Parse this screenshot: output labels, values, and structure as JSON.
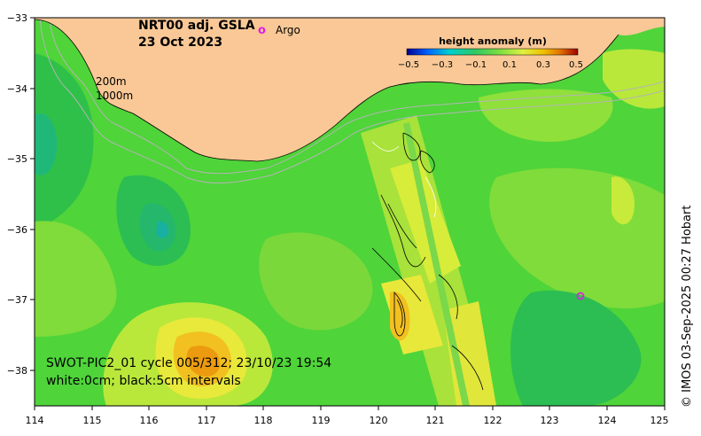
{
  "map": {
    "title_line1": "NRT00 adj. GSLA",
    "title_line2": "23 Oct 2023",
    "argo_marker": "o",
    "argo_label": "Argo",
    "depth_label_200": "200m",
    "depth_label_1000": "1000m",
    "caption_line1": "SWOT-PIC2_01 cycle 005/312; 23/10/23 19:54",
    "caption_line2": "white:0cm; black:5cm intervals",
    "credit": "© IMOS 03-Sep-2025 00:27 Hobart",
    "colors": {
      "land": "#f9c896",
      "ocean_base": "#4fd43a",
      "argo": "#e020e0"
    }
  },
  "colorbar": {
    "title": "height anomaly (m)",
    "ticks": [
      "−0.5",
      "−0.3",
      "−0.1",
      "0.1",
      "0.3",
      "0.5"
    ],
    "colors": [
      "#00008f",
      "#0060ff",
      "#00d0d0",
      "#30c860",
      "#80e040",
      "#e0f040",
      "#f0c000",
      "#e07000",
      "#a00000"
    ]
  },
  "axes": {
    "x_ticks": [
      "114",
      "115",
      "116",
      "117",
      "118",
      "119",
      "120",
      "121",
      "122",
      "123",
      "124",
      "125"
    ],
    "y_ticks": [
      "−33",
      "−34",
      "−35",
      "−36",
      "−37",
      "−38"
    ],
    "lon_range": [
      114,
      125
    ],
    "lat_range": [
      -33,
      -38.5
    ]
  }
}
